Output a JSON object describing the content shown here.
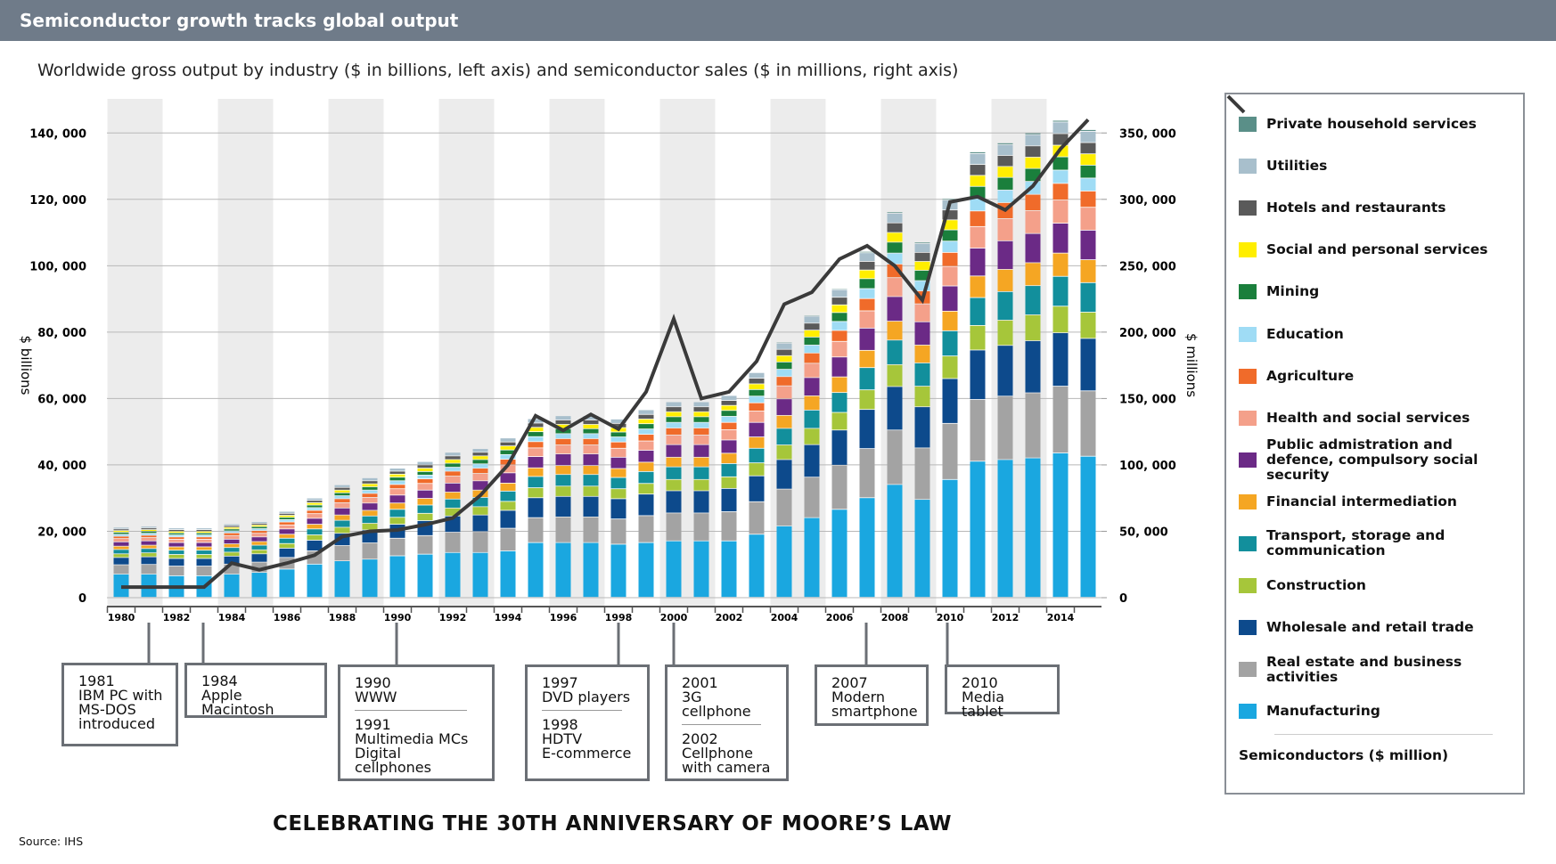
{
  "chart_data": {
    "type": "stacked_bar_line",
    "title": "Semiconductor growth tracks global output",
    "subtitle": "Worldwide gross output by industry ($ in billions, left axis) and semiconductor sales ($ in millions, right axis)",
    "y_label": "$ billions",
    "y2_label": "$ millions",
    "footer": "CELEBRATING THE 30TH ANNIVERSARY OF MOORE’S LAW",
    "source": "Source: IHS",
    "categories": [
      "1980",
      null,
      "1982",
      null,
      "1984",
      null,
      "1986",
      null,
      "1988",
      null,
      "1990",
      null,
      "1992",
      null,
      "1994",
      null,
      "1996",
      null,
      "1998",
      null,
      "2000",
      null,
      "2002",
      null,
      "2004",
      null,
      "2006",
      null,
      "2008",
      null,
      "2010",
      null,
      "2012",
      null,
      "2014",
      null
    ],
    "ylim": [
      0,
      150000
    ],
    "yticks": [
      0,
      {
        "value": 20000,
        "label": "20, 000"
      },
      {
        "value": 40000,
        "label": "40, 000"
      },
      {
        "value": 60000,
        "label": "60, 000"
      },
      {
        "value": 80000,
        "label": "80, 000"
      },
      {
        "value": 100000,
        "label": "100, 000"
      },
      {
        "value": 120000,
        "label": "120, 000"
      },
      {
        "value": 140000,
        "label": "140, 000"
      }
    ],
    "y2lim": [
      0,
      375000
    ],
    "y2ticks": [
      0,
      {
        "value": 50000,
        "label": "50, 000"
      },
      {
        "value": 100000,
        "label": "100, 000"
      },
      {
        "value": 150000,
        "label": "150, 000"
      },
      {
        "value": 200000,
        "label": "200, 000"
      },
      {
        "value": 250000,
        "label": "250, 000"
      },
      {
        "value": 300000,
        "label": "300, 000"
      },
      {
        "value": 350000,
        "label": "350, 000"
      }
    ],
    "grid": true,
    "series": [
      {
        "name": "Manufacturing",
        "color": "#1aa7e0",
        "values": [
          7000,
          7000,
          6500,
          6500,
          7000,
          7500,
          8500,
          10000,
          11000,
          11500,
          12500,
          13000,
          13500,
          13500,
          14000,
          16500,
          16500,
          16500,
          16000,
          16500,
          17000,
          17000,
          17000,
          19000,
          21500,
          24000,
          26500,
          30000,
          34000,
          29500,
          35500,
          41000,
          41500,
          42000,
          43500,
          42500
        ]
      },
      {
        "name": "Real estate and business activities",
        "color": "#a3a3a3",
        "values": [
          2800,
          2900,
          2900,
          2900,
          3000,
          3100,
          3500,
          4000,
          4600,
          4900,
          5300,
          5600,
          6100,
          6300,
          6800,
          7500,
          7700,
          7700,
          7600,
          8100,
          8400,
          8400,
          8800,
          9800,
          11100,
          12200,
          13300,
          14800,
          16400,
          15500,
          16900,
          18600,
          19100,
          19600,
          20100,
          19700
        ]
      },
      {
        "name": "Wholesale and retail trade",
        "color": "#0d4a8c",
        "values": [
          2200,
          2300,
          2300,
          2300,
          2400,
          2500,
          2800,
          3200,
          3700,
          3900,
          4200,
          4500,
          4900,
          5000,
          5400,
          6000,
          6200,
          6200,
          6100,
          6500,
          6700,
          6700,
          7000,
          7800,
          8900,
          9800,
          10600,
          11800,
          13100,
          12400,
          13500,
          14900,
          15300,
          15700,
          16100,
          15800
        ]
      },
      {
        "name": "Construction",
        "color": "#a6c63a",
        "values": [
          1100,
          1200,
          1200,
          1200,
          1200,
          1200,
          1400,
          1600,
          1800,
          2000,
          2100,
          2200,
          2400,
          2500,
          2700,
          3000,
          3100,
          3100,
          3000,
          3200,
          3400,
          3400,
          3500,
          3900,
          4400,
          4900,
          5300,
          5900,
          6600,
          6200,
          6800,
          7400,
          7600,
          7800,
          8000,
          7900
        ]
      },
      {
        "name": "Transport, storage and communication",
        "color": "#128f9c",
        "values": [
          1300,
          1300,
          1300,
          1300,
          1400,
          1400,
          1600,
          1800,
          2100,
          2200,
          2400,
          2500,
          2700,
          2800,
          3100,
          3400,
          3500,
          3500,
          3400,
          3600,
          3800,
          3800,
          4000,
          4400,
          5000,
          5500,
          6000,
          6700,
          7400,
          7000,
          7600,
          8400,
          8600,
          8800,
          9000,
          8900
        ]
      },
      {
        "name": "Financial intermediation",
        "color": "#f5a623",
        "values": [
          1000,
          1000,
          1000,
          1000,
          1100,
          1100,
          1200,
          1400,
          1600,
          1700,
          1900,
          2000,
          2100,
          2200,
          2400,
          2600,
          2700,
          2700,
          2700,
          2800,
          2900,
          2900,
          3100,
          3400,
          3900,
          4300,
          4700,
          5200,
          5700,
          5400,
          5900,
          6500,
          6700,
          6900,
          7000,
          6900
        ]
      },
      {
        "name": "Public admistration and defence, compulsory social security",
        "color": "#6b2a86",
        "values": [
          1300,
          1300,
          1300,
          1300,
          1400,
          1400,
          1600,
          1800,
          2100,
          2200,
          2400,
          2500,
          2700,
          2800,
          3100,
          3400,
          3500,
          3500,
          3400,
          3600,
          3800,
          3800,
          4000,
          4400,
          5000,
          5500,
          6000,
          6700,
          7400,
          7000,
          7600,
          8400,
          8600,
          8800,
          9000,
          8900
        ]
      },
      {
        "name": "Health and social services",
        "color": "#f4a08a",
        "values": [
          1000,
          1000,
          1000,
          1000,
          1100,
          1100,
          1200,
          1400,
          1600,
          1700,
          1900,
          2000,
          2100,
          2200,
          2400,
          2600,
          2700,
          2700,
          2700,
          2800,
          2900,
          2900,
          3100,
          3400,
          3900,
          4300,
          4700,
          5200,
          5700,
          5400,
          5900,
          6500,
          6700,
          6900,
          7000,
          6900
        ]
      },
      {
        "name": "Agriculture",
        "color": "#f06b2a",
        "values": [
          700,
          700,
          700,
          700,
          800,
          800,
          900,
          1000,
          1200,
          1200,
          1300,
          1400,
          1500,
          1600,
          1700,
          1900,
          1900,
          1900,
          1900,
          2000,
          2100,
          2100,
          2200,
          2500,
          2800,
          3100,
          3300,
          3700,
          4100,
          3900,
          4200,
          4700,
          4800,
          4900,
          5000,
          4900
        ]
      },
      {
        "name": "Education",
        "color": "#9fdcf5",
        "values": [
          600,
          600,
          600,
          600,
          600,
          600,
          700,
          800,
          900,
          1000,
          1100,
          1100,
          1200,
          1300,
          1400,
          1500,
          1500,
          1500,
          1500,
          1600,
          1700,
          1700,
          1800,
          2000,
          2200,
          2400,
          2700,
          3000,
          3300,
          3100,
          3400,
          3700,
          3800,
          3900,
          4000,
          3900
        ]
      },
      {
        "name": "Mining",
        "color": "#1a7f3c",
        "values": [
          600,
          600,
          600,
          600,
          600,
          600,
          700,
          800,
          900,
          1000,
          1100,
          1100,
          1200,
          1300,
          1400,
          1500,
          1500,
          1500,
          1500,
          1600,
          1700,
          1700,
          1800,
          2000,
          2200,
          2400,
          2700,
          3000,
          3300,
          3100,
          3400,
          3700,
          3800,
          3900,
          4000,
          3900
        ]
      },
      {
        "name": "Social and personal services",
        "color": "#ffee00",
        "values": [
          500,
          500,
          500,
          500,
          500,
          500,
          600,
          700,
          800,
          900,
          900,
          1000,
          1100,
          1100,
          1200,
          1300,
          1300,
          1300,
          1300,
          1400,
          1500,
          1500,
          1500,
          1700,
          1900,
          2100,
          2300,
          2600,
          2900,
          2700,
          3000,
          3300,
          3300,
          3400,
          3500,
          3400
        ]
      },
      {
        "name": "Hotels and restaurants",
        "color": "#5a5a5a",
        "values": [
          500,
          500,
          500,
          500,
          500,
          500,
          600,
          700,
          800,
          900,
          900,
          1000,
          1100,
          1100,
          1200,
          1300,
          1300,
          1300,
          1300,
          1400,
          1500,
          1500,
          1500,
          1700,
          1900,
          2100,
          2300,
          2600,
          2900,
          2700,
          3000,
          3300,
          3300,
          3400,
          3500,
          3400
        ]
      },
      {
        "name": "Utilities",
        "color": "#a8bfcc",
        "values": [
          500,
          500,
          500,
          500,
          500,
          500,
          600,
          700,
          800,
          900,
          900,
          1000,
          1100,
          1100,
          1200,
          1300,
          1300,
          1300,
          1300,
          1400,
          1500,
          1500,
          1500,
          1700,
          1900,
          2100,
          2300,
          2600,
          2900,
          2700,
          3000,
          3300,
          3300,
          3400,
          3500,
          3400
        ]
      },
      {
        "name": "Private household services",
        "color": "#5a8f88",
        "values": [
          100,
          100,
          100,
          100,
          100,
          100,
          100,
          100,
          100,
          100,
          100,
          100,
          200,
          200,
          200,
          200,
          200,
          200,
          200,
          200,
          200,
          200,
          200,
          200,
          300,
          300,
          300,
          400,
          400,
          400,
          400,
          500,
          500,
          500,
          500,
          500
        ]
      },
      {
        "name": "Semiconductors ($ million)",
        "color": "#3a3a3a",
        "axis": "y2",
        "type": "line",
        "values": [
          8000,
          8000,
          8000,
          8000,
          26000,
          21000,
          26000,
          32000,
          46000,
          50000,
          51000,
          55000,
          60000,
          77000,
          100000,
          137000,
          126000,
          138000,
          127000,
          155000,
          210000,
          150000,
          155000,
          178000,
          221000,
          230000,
          255000,
          265000,
          250000,
          224000,
          298000,
          302000,
          292000,
          310000,
          338000,
          360000
        ]
      }
    ],
    "annotations": [
      {
        "groups": [
          [
            "1981",
            "IBM PC with",
            "MS-DOS",
            "introduced"
          ]
        ]
      },
      {
        "groups": [
          [
            "1984",
            "Apple Macintosh"
          ]
        ]
      },
      {
        "groups": [
          [
            "1990",
            "WWW"
          ],
          [
            "1991",
            "Multimedia MCs",
            "Digital cellphones"
          ]
        ]
      },
      {
        "groups": [
          [
            "1997",
            "DVD players"
          ],
          [
            "1998",
            "HDTV",
            "E-commerce"
          ]
        ]
      },
      {
        "groups": [
          [
            "2001",
            "3G cellphone"
          ],
          [
            "2002",
            "Cellphone",
            "with camera"
          ]
        ]
      },
      {
        "groups": [
          [
            "2007",
            "Modern",
            "smartphone"
          ]
        ]
      },
      {
        "groups": [
          [
            "2010",
            "Media tablet"
          ]
        ]
      }
    ]
  }
}
